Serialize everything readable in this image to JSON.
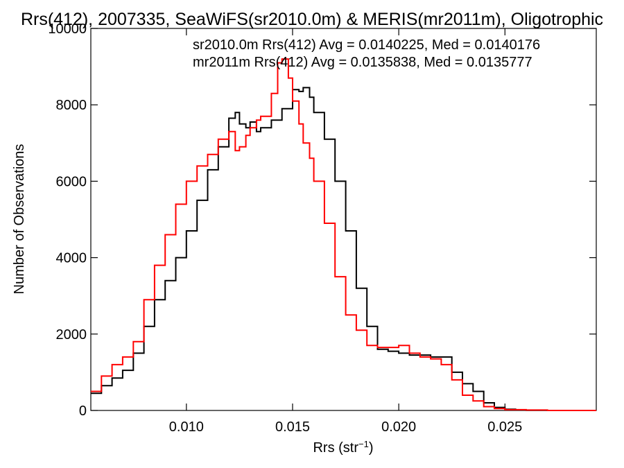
{
  "chart_data": {
    "type": "line",
    "title": "Rrs(412), 2007335, SeaWiFS(sr2010.0m) & MERIS(mr2011m), Oligotrophic",
    "xlabel_main": "Rrs (str",
    "xlabel_sup": "−1",
    "xlabel_close": ")",
    "ylabel": "Number of Observations",
    "xlim": [
      0.0055,
      0.0293
    ],
    "ylim": [
      0,
      10000
    ],
    "xticks": [
      0.01,
      0.015,
      0.02,
      0.025
    ],
    "xtick_labels": [
      "0.010",
      "0.015",
      "0.020",
      "0.025"
    ],
    "yticks": [
      0,
      2000,
      4000,
      6000,
      8000,
      10000
    ],
    "ytick_labels": [
      "0",
      "2000",
      "4000",
      "6000",
      "8000",
      "10000"
    ],
    "grid": false,
    "legend_position": "top-right",
    "series": [
      {
        "label": "sr2010.0m Rrs(412) Avg = 0.0140225, Med = 0.0140176",
        "color": "#000000",
        "x": [
          0.0055,
          0.006,
          0.0065,
          0.007,
          0.0075,
          0.008,
          0.0085,
          0.009,
          0.0095,
          0.01,
          0.0105,
          0.011,
          0.0115,
          0.012,
          0.0123,
          0.0125,
          0.0128,
          0.013,
          0.0133,
          0.0135,
          0.014,
          0.0145,
          0.015,
          0.0153,
          0.0155,
          0.0158,
          0.016,
          0.0165,
          0.017,
          0.0175,
          0.018,
          0.0185,
          0.019,
          0.0195,
          0.02,
          0.0205,
          0.021,
          0.0215,
          0.022,
          0.0225,
          0.023,
          0.0235,
          0.024,
          0.0245,
          0.025,
          0.0255,
          0.026,
          0.027,
          0.028,
          0.0293
        ],
        "y": [
          450,
          650,
          850,
          1050,
          1500,
          2200,
          2900,
          3400,
          4000,
          4700,
          5500,
          6300,
          6900,
          7650,
          7800,
          7500,
          7400,
          7550,
          7300,
          7400,
          7600,
          7900,
          8400,
          8350,
          8450,
          8200,
          7800,
          7100,
          6000,
          4700,
          3200,
          2200,
          1600,
          1550,
          1500,
          1450,
          1450,
          1400,
          1400,
          1000,
          700,
          500,
          200,
          80,
          30,
          10,
          5,
          0,
          0,
          0
        ]
      },
      {
        "label": "mr2011m Rrs(412) Avg = 0.0135838, Med = 0.0135777",
        "color": "#ff0000",
        "x": [
          0.0055,
          0.006,
          0.0065,
          0.007,
          0.0075,
          0.008,
          0.0085,
          0.009,
          0.0095,
          0.01,
          0.0105,
          0.011,
          0.0115,
          0.012,
          0.0123,
          0.0125,
          0.0128,
          0.013,
          0.0133,
          0.0135,
          0.014,
          0.0143,
          0.0145,
          0.0148,
          0.015,
          0.0153,
          0.0155,
          0.0158,
          0.016,
          0.0165,
          0.017,
          0.0175,
          0.018,
          0.0185,
          0.019,
          0.0195,
          0.02,
          0.0205,
          0.021,
          0.0215,
          0.022,
          0.0225,
          0.023,
          0.0235,
          0.024,
          0.0245,
          0.025,
          0.026,
          0.027,
          0.0293
        ],
        "y": [
          500,
          900,
          1200,
          1400,
          1800,
          2900,
          3800,
          4600,
          5400,
          6000,
          6400,
          6700,
          7100,
          7300,
          6800,
          6900,
          7200,
          7400,
          7600,
          7700,
          8300,
          9100,
          9200,
          8700,
          8100,
          7500,
          7000,
          6600,
          6000,
          4900,
          3500,
          2500,
          2100,
          1700,
          1650,
          1650,
          1700,
          1500,
          1400,
          1350,
          1200,
          800,
          400,
          250,
          100,
          50,
          20,
          10,
          0,
          0
        ]
      }
    ]
  }
}
